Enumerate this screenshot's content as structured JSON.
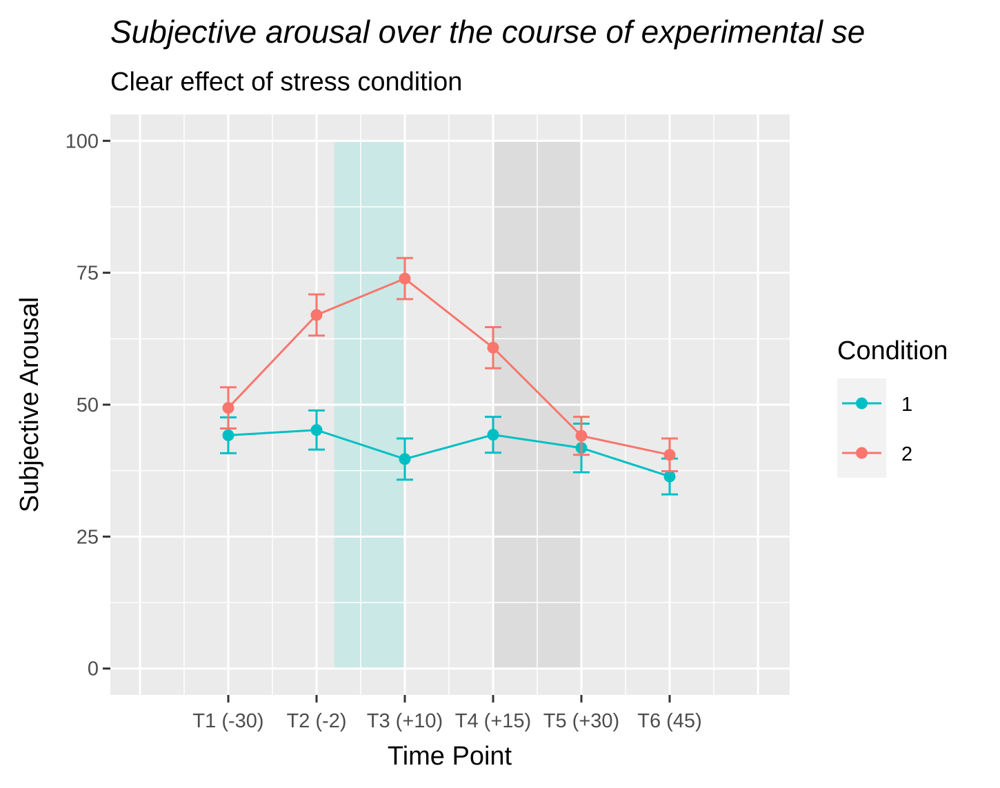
{
  "chart_data": {
    "type": "line",
    "title": "Subjective arousal over the course of experimental se",
    "subtitle": "Clear effect of stress condition",
    "xlabel": "Time Point",
    "ylabel": "Subjective Arousal",
    "categories": [
      "T1 (-30)",
      "T2 (-2)",
      "T3 (+10)",
      "T4 (+15)",
      "T5 (+30)",
      "T6 (45)"
    ],
    "ylim": [
      -5,
      105
    ],
    "yticks": [
      0,
      25,
      50,
      75,
      100
    ],
    "grid": true,
    "legend": {
      "title": "Condition",
      "position": "right"
    },
    "series": [
      {
        "name": "1",
        "color": "#00BFC4",
        "values": [
          44.2,
          45.2,
          39.7,
          44.3,
          41.8,
          36.4
        ],
        "error_lower": [
          40.8,
          41.5,
          35.8,
          40.9,
          37.2,
          33.0
        ],
        "error_upper": [
          47.6,
          48.9,
          43.6,
          47.7,
          46.4,
          39.8
        ]
      },
      {
        "name": "2",
        "color": "#F8766D",
        "values": [
          49.4,
          67.0,
          73.9,
          60.8,
          44.1,
          40.5
        ],
        "error_lower": [
          45.5,
          63.1,
          70.0,
          56.9,
          40.5,
          37.4
        ],
        "error_upper": [
          53.3,
          70.9,
          77.8,
          64.7,
          47.7,
          43.6
        ]
      }
    ],
    "shaded_regions": [
      {
        "x_start": 2.2,
        "x_end": 3.0,
        "y_start": 0,
        "y_end": 100,
        "color": "#aee5e1"
      },
      {
        "x_start": 4.0,
        "x_end": 5.0,
        "y_start": 0,
        "y_end": 100,
        "color": "#cfcfcf"
      }
    ]
  }
}
